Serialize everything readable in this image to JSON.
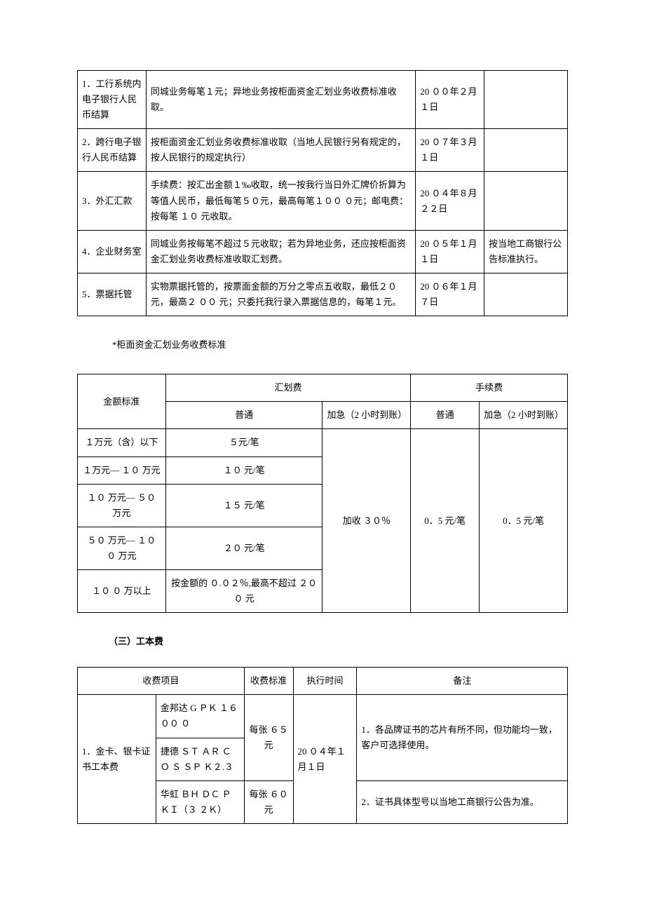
{
  "table1": {
    "rows": [
      {
        "item": "1．工行系统内电子银行人民币结算",
        "desc": "同城业务每笔１元；异地业务按柜面资金汇划业务收费标准收取。",
        "date": "20 ００年２月１日",
        "remark": ""
      },
      {
        "item": "2．跨行电子银行人民币结算",
        "desc": "按柜面资金汇划业务收费标准收取（当地人民银行另有规定的，按人民银行的规定执行）",
        "date": "20 ０７年３月１日",
        "remark": ""
      },
      {
        "item": "3．外汇汇款",
        "desc": "手续费：按汇出金额１‰收取，统一按我行当日外汇牌价折算为等值人民币，最低每笔５０元，最高每笔１００ ０元；邮电费：按每笔 １０ 元收取。",
        "date": "20 ０４年８月２２日",
        "remark": ""
      },
      {
        "item": "4．企业财务室",
        "desc": "同城业务按每笔不超过５元收取；若为异地业务，还应按柜面资金汇划业务收费标准收取汇划费。",
        "date": "20 ０５年１月１日",
        "remark": "按当地工商银行公告标准执行。"
      },
      {
        "item": "5．票据托管",
        "desc": "实物票据托管的，按票面金额的万分之零点五收取，最低２０元，最高２ ００ 元；只委托我行录入票据信息的，每笔１元。",
        "date": "20 ０６年１月７日",
        "remark": ""
      }
    ]
  },
  "note": "*柜面资金汇划业务收费标准",
  "table2": {
    "headers": {
      "amount": "金额标准",
      "transfer_fee": "汇划费",
      "service_fee": "手续费",
      "normal": "普通",
      "urgent": "加急（2 小时到账）",
      "fee_normal": "普通",
      "fee_urgent": "加急（2 小时到账）"
    },
    "rows": [
      {
        "amount": "１万元（含）以下",
        "normal": "５元/笔"
      },
      {
        "amount": "１万元— １０ 万元",
        "normal": "１０ 元/笔"
      },
      {
        "amount": "１０ 万元— ５０ 万元",
        "normal": "１５ 元/笔"
      },
      {
        "amount": "５０ 万元— １０ ０ 万元",
        "normal": "２０ 元/笔"
      },
      {
        "amount": "１０ ０ 万以上",
        "normal": "按金额的 ０.０２％,最高不超过 ２０ ０ 元"
      }
    ],
    "urgent_surcharge": "加收 ３０％",
    "fee_normal": "0．5 元/笔",
    "fee_urgent": "0．5 元/笔"
  },
  "section3": "（三）工本费",
  "table3": {
    "headers": {
      "item": "收费项目",
      "standard": "收费标准",
      "date": "执行时间",
      "remark": "备注"
    },
    "item_label": "1．金卡、银卡证书工本费",
    "brands": [
      {
        "name": "金邦达 G ＰＫ １６ ００ ０",
        "price": "每张 ６５ 元"
      },
      {
        "name": "捷德 ＳＴ ＡＲ ＣＯ Ｓ ＳＰ Ｋ２.３",
        "price_merged": true
      },
      {
        "name": "华虹 ＢＨ ＤＣ Ｐ ＫＩ（３ ２Ｋ）",
        "price": "每张 ６０ 元"
      }
    ],
    "date": "20 ０４年１月１日",
    "remarks": [
      "1．各品牌证书的芯片有所不同，但功能均一致，客户可选择使用。",
      "2．证书具体型号以当地工商银行公告为准。"
    ]
  }
}
